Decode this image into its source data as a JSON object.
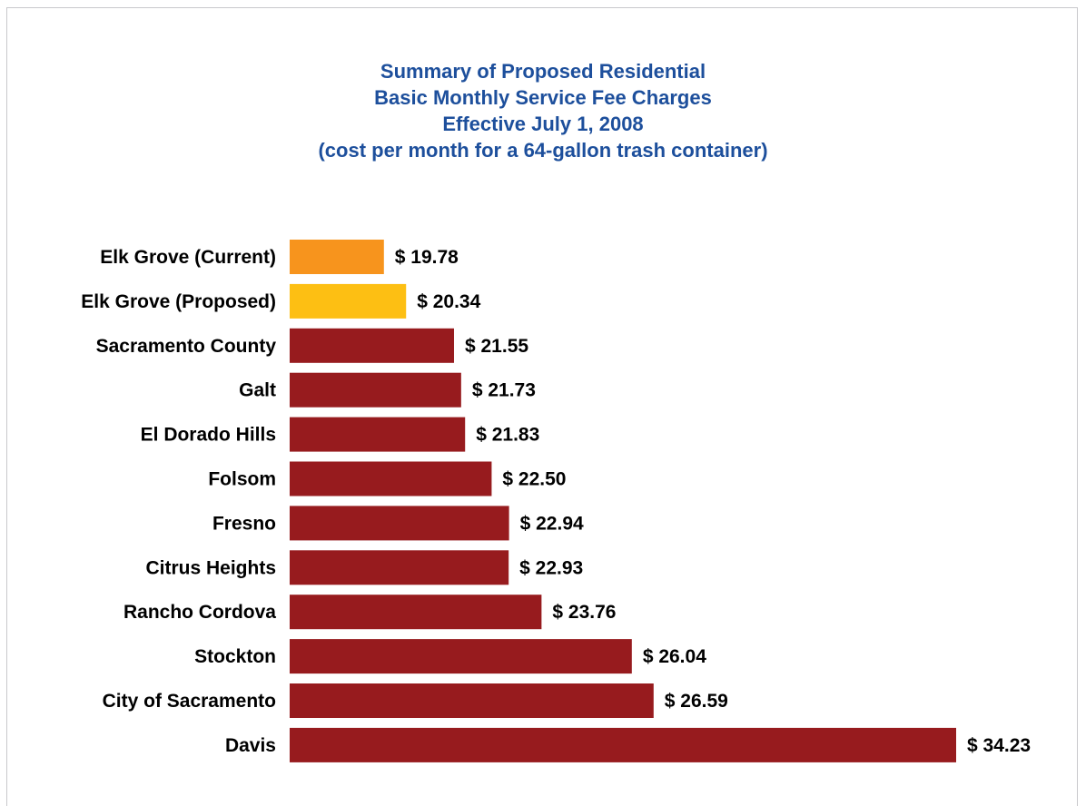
{
  "chart_data": {
    "type": "bar",
    "orientation": "horizontal",
    "title_lines": [
      "Summary of Proposed Residential",
      "Basic Monthly Service Fee Charges",
      "Effective July 1, 2008",
      "(cost per month for a 64-gallon trash container)"
    ],
    "categories": [
      "Elk Grove (Current)",
      "Elk Grove (Proposed)",
      "Sacramento County",
      "Galt",
      "El Dorado Hills",
      "Folsom",
      "Fresno",
      "Citrus Heights",
      "Rancho Cordova",
      "Stockton",
      "City of Sacramento",
      "Davis"
    ],
    "values": [
      19.78,
      20.34,
      21.55,
      21.73,
      21.83,
      22.5,
      22.94,
      22.93,
      23.76,
      26.04,
      26.59,
      34.23
    ],
    "value_labels": [
      "$ 19.78",
      "$ 20.34",
      "$ 21.55",
      "$ 21.73",
      "$ 21.83",
      "$ 22.50",
      "$ 22.94",
      "$ 22.93",
      "$ 23.76",
      "$ 26.04",
      "$ 26.59",
      "$ 34.23"
    ],
    "bar_colors": [
      "#f7941d",
      "#fdbf13",
      "#971b1e",
      "#971b1e",
      "#971b1e",
      "#971b1e",
      "#971b1e",
      "#971b1e",
      "#971b1e",
      "#971b1e",
      "#971b1e",
      "#971b1e"
    ],
    "xlim": [
      17.4,
      34.23
    ],
    "grid": false,
    "legend": "none",
    "title_color": "#1d4f9c"
  }
}
